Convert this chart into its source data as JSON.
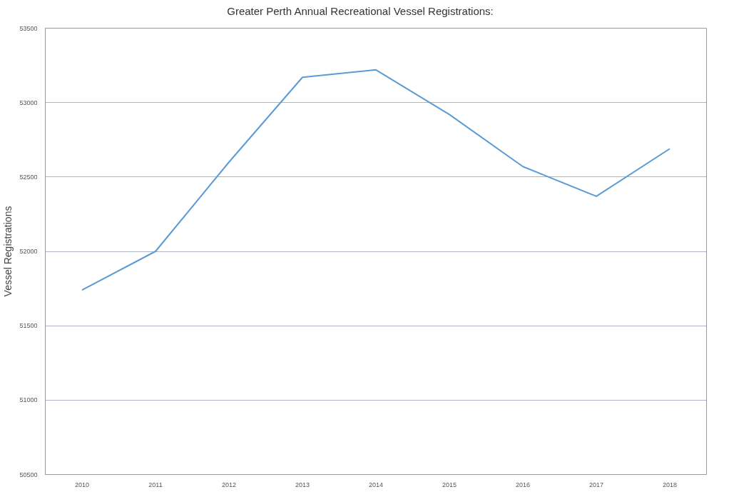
{
  "chart_data": {
    "type": "line",
    "title": "Greater Perth Annual Recreational Vessel Registrations:",
    "ylabel": "Vessel Registrations",
    "categories": [
      "2010",
      "2011",
      "2012",
      "2013",
      "2014",
      "2015",
      "2016",
      "2017",
      "2018"
    ],
    "series": [
      {
        "color": "#5b9bd5",
        "values": [
          51740,
          52000,
          52600,
          53170,
          53220,
          52920,
          52570,
          52370,
          52690
        ]
      }
    ],
    "ylim": [
      50500,
      53500
    ],
    "yticks": [
      50500,
      51000,
      51500,
      52000,
      52500,
      53000,
      53500
    ],
    "grid": "y",
    "marker": "none",
    "line_style": "solid"
  }
}
